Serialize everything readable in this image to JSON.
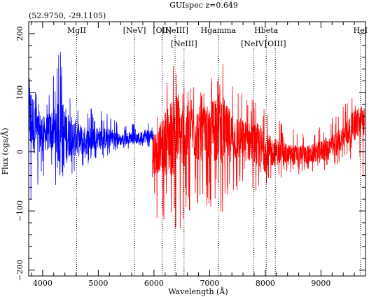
{
  "chart_data": {
    "type": "line",
    "title": "GUIspec z=0.649",
    "coords": "(52.9750, -29.1105)",
    "xlabel": "Wavelength (Å)",
    "ylabel": "Flux (cgs/Å)",
    "xlim": [
      3750,
      9800
    ],
    "ylim": [
      -210,
      220
    ],
    "x_ticks": [
      4000,
      5000,
      6000,
      7000,
      8000,
      9000
    ],
    "y_ticks": [
      -200,
      -100,
      0,
      100,
      200
    ],
    "x_tick_labels": [
      "4000",
      "5000",
      "6000",
      "7000",
      "8000",
      "9000"
    ],
    "y_tick_labels": [
      "−200",
      "−100",
      "0",
      "100",
      "200"
    ],
    "grid": false,
    "series": [
      {
        "color": "#0000ff",
        "x": [
          3760,
          3900,
          4050,
          4200,
          4350,
          4500,
          4650,
          4800,
          4950,
          5100,
          5250,
          5400,
          5550,
          5700,
          5850,
          6000
        ],
        "y": [
          60,
          35,
          30,
          38,
          25,
          28,
          20,
          18,
          25,
          22,
          25,
          20,
          24,
          22,
          28,
          25
        ],
        "max": [
          160,
          105,
          90,
          130,
          205,
          110,
          90,
          80,
          70,
          75,
          60,
          45,
          50,
          48,
          62,
          50
        ],
        "min": [
          -140,
          -60,
          -40,
          -50,
          -80,
          -45,
          -40,
          -25,
          -15,
          -12,
          -5,
          0,
          5,
          10,
          5,
          0
        ]
      },
      {
        "color": "#ff0000",
        "x": [
          5970,
          6100,
          6250,
          6400,
          6550,
          6700,
          6850,
          7000,
          7150,
          7300,
          7450,
          7600,
          7750,
          7900,
          8050,
          8200,
          8350,
          8500,
          8650,
          8800,
          8950,
          9100,
          9250,
          9400,
          9550,
          9700,
          9780
        ],
        "y": [
          -5,
          5,
          20,
          30,
          25,
          35,
          30,
          25,
          55,
          30,
          25,
          20,
          15,
          5,
          0,
          0,
          -5,
          -5,
          -5,
          -5,
          0,
          5,
          10,
          25,
          40,
          50,
          55
        ],
        "max": [
          70,
          65,
          130,
          155,
          110,
          125,
          120,
          110,
          205,
          135,
          110,
          100,
          95,
          120,
          75,
          60,
          45,
          40,
          35,
          40,
          45,
          60,
          70,
          80,
          95,
          80,
          70
        ],
        "min": [
          -135,
          -110,
          -150,
          -175,
          -120,
          -100,
          -90,
          -95,
          -130,
          -90,
          -75,
          -60,
          -60,
          -80,
          -55,
          -45,
          -45,
          -40,
          -40,
          -35,
          -30,
          -35,
          -25,
          -15,
          -20,
          -40,
          -60
        ]
      }
    ],
    "lines": [
      {
        "label": "MgII",
        "x": 4611,
        "row": 1
      },
      {
        "label": "[NeV]",
        "x": 5650,
        "row": 1
      },
      {
        "label": "[OII]",
        "x": 6146,
        "row": 1
      },
      {
        "label": "[NeIII]",
        "x": 6379,
        "row": 1
      },
      {
        "label": "[NeIII]",
        "x": 6540,
        "row": 2
      },
      {
        "label": "Hgamma",
        "x": 7157,
        "row": 1
      },
      {
        "label": "[NeIV]",
        "x": 7795,
        "row": 2
      },
      {
        "label": "Hbeta",
        "x": 8016,
        "row": 1
      },
      {
        "label": "[OIII]",
        "x": 8180,
        "row": 2
      },
      {
        "label": "HeI",
        "x": 9710,
        "row": 1
      }
    ]
  }
}
